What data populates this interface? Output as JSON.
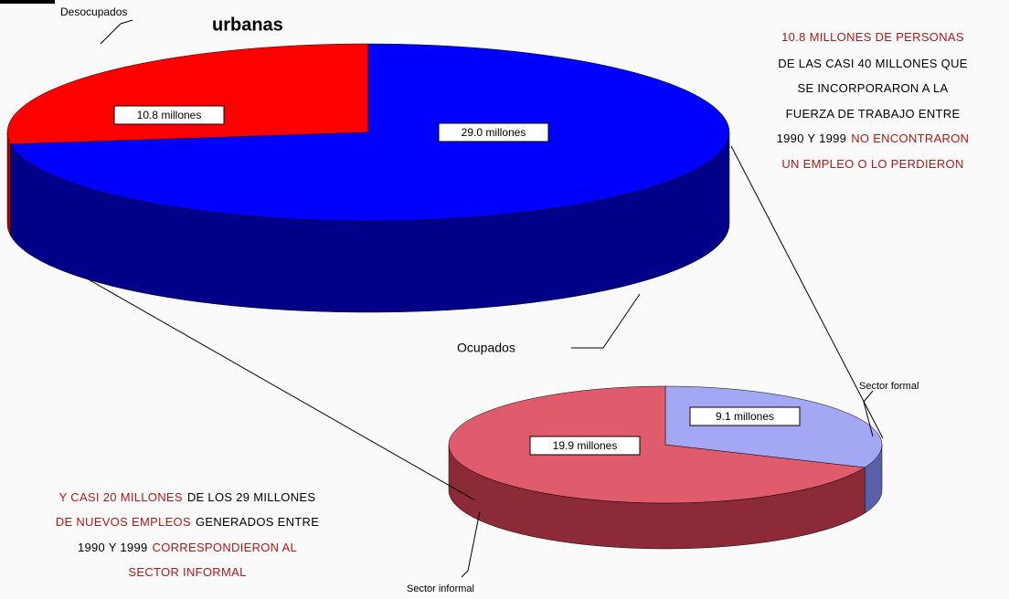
{
  "chart_data": [
    {
      "type": "pie3d",
      "title": "urbanas",
      "categories": [
        "Desocupados",
        "Ocupados"
      ],
      "values": [
        10.8,
        29.0
      ],
      "value_labels": [
        "10.8 millones",
        "29.0 millones"
      ],
      "colors": [
        "#ff0000",
        "#0000ff"
      ],
      "side_colors": [
        "#b00000",
        "#000088"
      ]
    },
    {
      "type": "pie3d",
      "categories": [
        "Sector formal",
        "Sector informal"
      ],
      "values": [
        9.1,
        19.9
      ],
      "value_labels": [
        "9.1 millones",
        "19.9 millones"
      ],
      "colors": [
        "#a4a8f4",
        "#e05c6c"
      ],
      "side_colors": [
        "#5860a8",
        "#8c2a38"
      ]
    }
  ],
  "annotations": {
    "right": [
      [
        {
          "text": "10.8 MILLONES DE PERSONAS",
          "color": "#b01818"
        }
      ],
      [
        {
          "text": "DE LAS CASI 40 MILLONES QUE",
          "color": "#000000"
        }
      ],
      [
        {
          "text": "SE INCORPORARON A LA",
          "color": "#000000"
        }
      ],
      [
        {
          "text": "FUERZA DE TRABAJO ENTRE",
          "color": "#000000"
        }
      ],
      [
        {
          "text": "1990 Y 1999",
          "color": "#000000"
        },
        {
          "text": "NO ENCONTRARON",
          "color": "#b01818"
        }
      ],
      [
        {
          "text": "UN EMPLEO O LO PERDIERON",
          "color": "#b01818"
        }
      ]
    ],
    "left": [
      [
        {
          "text": "Y CASI 20 MILLONES",
          "color": "#b01818"
        },
        {
          "text": "DE LOS 29 MILLONES",
          "color": "#000000"
        }
      ],
      [
        {
          "text": "DE NUEVOS EMPLEOS",
          "color": "#b01818"
        },
        {
          "text": "GENERADOS ENTRE",
          "color": "#000000"
        }
      ],
      [
        {
          "text": "1990 Y 1999",
          "color": "#000000"
        },
        {
          "text": "CORRESPONDIERON AL",
          "color": "#b01818"
        }
      ],
      [
        {
          "text": "SECTOR INFORMAL",
          "color": "#b01818"
        }
      ]
    ]
  }
}
